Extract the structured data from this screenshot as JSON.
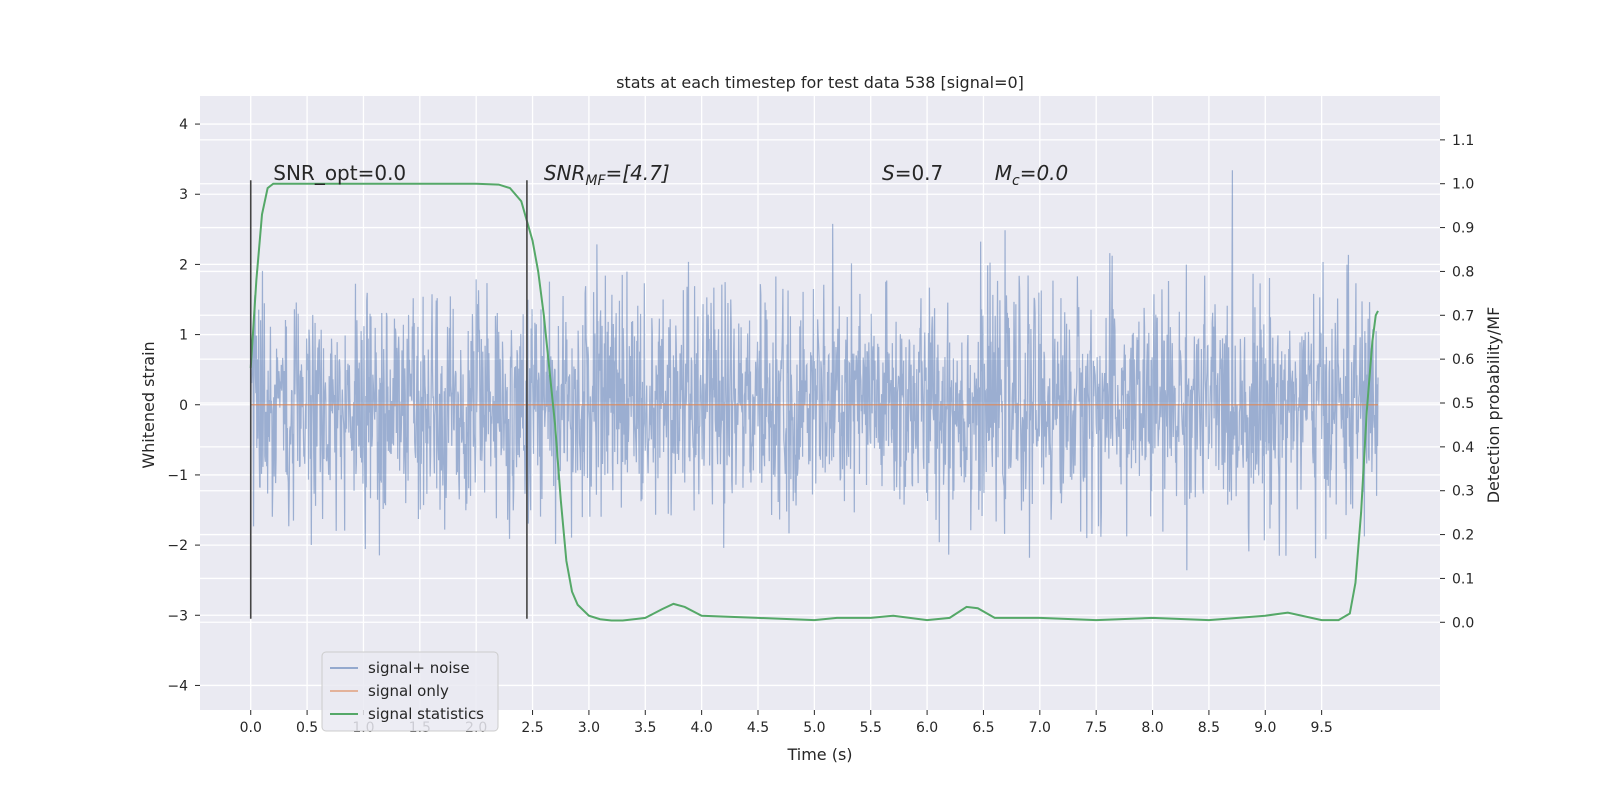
{
  "chart_data": {
    "type": "line",
    "title": "stats at each timestep for test data 538 [signal=0]",
    "xlabel": "Time (s)",
    "ylabel": "Whitened strain",
    "y2label": "Detection probability/MF",
    "xlim": [
      -0.45,
      10.55
    ],
    "ylim": [
      -4.35,
      4.4
    ],
    "y2lim": [
      -0.2,
      1.2
    ],
    "x_ticks": [
      0.0,
      0.5,
      1.0,
      1.5,
      2.0,
      2.5,
      3.0,
      3.5,
      4.0,
      4.5,
      5.0,
      5.5,
      6.0,
      6.5,
      7.0,
      7.5,
      8.0,
      8.5,
      9.0,
      9.5
    ],
    "x_tick_labels": [
      "0.0",
      "0.5",
      "1.0",
      "1.5",
      "2.0",
      "2.5",
      "3.0",
      "3.5",
      "4.0",
      "4.5",
      "5.0",
      "5.5",
      "6.0",
      "6.5",
      "7.0",
      "7.5",
      "8.0",
      "8.5",
      "9.0",
      "9.5"
    ],
    "y_ticks": [
      -4,
      -3,
      -2,
      -1,
      0,
      1,
      2,
      3,
      4
    ],
    "y_tick_labels": [
      "−4",
      "−3",
      "−2",
      "−1",
      "0",
      "1",
      "2",
      "3",
      "4"
    ],
    "y2_ticks": [
      0.0,
      0.1,
      0.2,
      0.3,
      0.4,
      0.5,
      0.6,
      0.7,
      0.8,
      0.9,
      1.0,
      1.1
    ],
    "y2_tick_labels": [
      "0.0",
      "0.1",
      "0.2",
      "0.3",
      "0.4",
      "0.5",
      "0.6",
      "0.7",
      "0.8",
      "0.9",
      "1.0",
      "1.1"
    ],
    "grid": true,
    "legend_position": "lower-left",
    "annotations": [
      {
        "x": 0.2,
        "y": 3.2,
        "prefix": "SNR_opt",
        "sub": "",
        "value": "=0.0",
        "italic": false
      },
      {
        "x": 2.6,
        "y": 3.2,
        "prefix": "SNR",
        "sub": "MF",
        "value": "=[4.7]",
        "italic": true
      },
      {
        "x": 5.6,
        "y": 3.2,
        "prefix": "S",
        "sub": "",
        "value": "=0.7",
        "italic": true
      },
      {
        "x": 6.6,
        "y": 3.2,
        "prefix": "M",
        "sub": "c",
        "value": "=0.0",
        "italic": true
      }
    ],
    "vlines": [
      {
        "x": 0.0,
        "ymin": -3.05,
        "ymax": 3.2
      },
      {
        "x": 2.45,
        "ymin": -3.05,
        "ymax": 3.2
      }
    ],
    "series": [
      {
        "name": "signal+ noise",
        "axis": "left",
        "color": "#4c72b0",
        "kind": "noise",
        "x_range": [
          0.0,
          10.0
        ],
        "std": 0.78,
        "envelope": [
          -3.6,
          3.6
        ]
      },
      {
        "name": "signal only",
        "axis": "left",
        "color": "#dd8452",
        "x": [
          0.0,
          10.0
        ],
        "y": [
          0.0,
          0.0
        ]
      },
      {
        "name": "signal statistics",
        "axis": "right",
        "color": "#55a868",
        "x": [
          0.0,
          0.05,
          0.1,
          0.15,
          0.2,
          0.3,
          0.5,
          1.0,
          1.5,
          2.0,
          2.2,
          2.3,
          2.4,
          2.5,
          2.55,
          2.6,
          2.7,
          2.75,
          2.8,
          2.85,
          2.9,
          3.0,
          3.1,
          3.2,
          3.3,
          3.5,
          3.65,
          3.75,
          3.85,
          4.0,
          4.5,
          5.0,
          5.2,
          5.5,
          5.7,
          6.0,
          6.2,
          6.35,
          6.45,
          6.6,
          7.0,
          7.5,
          8.0,
          8.5,
          9.0,
          9.2,
          9.5,
          9.65,
          9.75,
          9.8,
          9.85,
          9.9,
          9.95,
          9.98,
          10.0
        ],
        "y": [
          0.58,
          0.78,
          0.93,
          0.99,
          1.0,
          1.0,
          1.0,
          1.0,
          1.0,
          1.0,
          0.998,
          0.99,
          0.96,
          0.87,
          0.8,
          0.7,
          0.45,
          0.28,
          0.14,
          0.07,
          0.04,
          0.015,
          0.007,
          0.004,
          0.004,
          0.01,
          0.03,
          0.042,
          0.035,
          0.015,
          0.01,
          0.005,
          0.01,
          0.01,
          0.015,
          0.005,
          0.01,
          0.035,
          0.032,
          0.01,
          0.01,
          0.005,
          0.01,
          0.005,
          0.015,
          0.022,
          0.005,
          0.005,
          0.02,
          0.09,
          0.25,
          0.48,
          0.64,
          0.7,
          0.71
        ]
      }
    ]
  }
}
